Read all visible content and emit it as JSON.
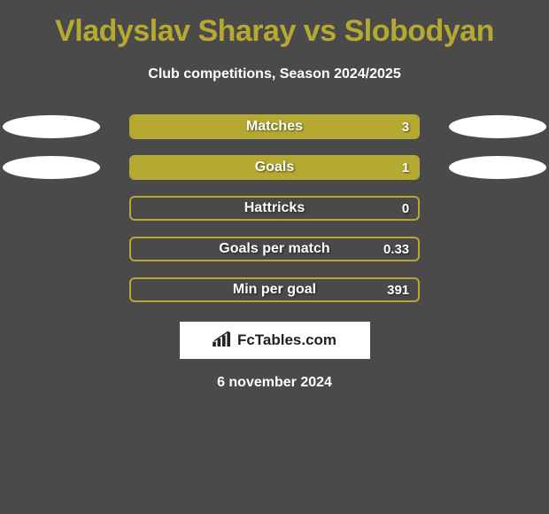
{
  "title": "Vladyslav Sharay vs Slobodyan",
  "subtitle": "Club competitions, Season 2024/2025",
  "colors": {
    "accent": "#b5a932",
    "background": "#4a4a4a",
    "text": "#ffffff",
    "panel_bg": "#ffffff"
  },
  "stats": [
    {
      "label": "Matches",
      "value": "3",
      "fill_pct": 100,
      "show_left_oval": true,
      "show_right_oval": true
    },
    {
      "label": "Goals",
      "value": "1",
      "fill_pct": 100,
      "show_left_oval": true,
      "show_right_oval": true
    },
    {
      "label": "Hattricks",
      "value": "0",
      "fill_pct": 0,
      "show_left_oval": false,
      "show_right_oval": false
    },
    {
      "label": "Goals per match",
      "value": "0.33",
      "fill_pct": 0,
      "show_left_oval": false,
      "show_right_oval": false
    },
    {
      "label": "Min per goal",
      "value": "391",
      "fill_pct": 0,
      "show_left_oval": false,
      "show_right_oval": false
    }
  ],
  "branding": {
    "text": "FcTables.com",
    "icon": "chart-bar-icon"
  },
  "date": "6 november 2024"
}
